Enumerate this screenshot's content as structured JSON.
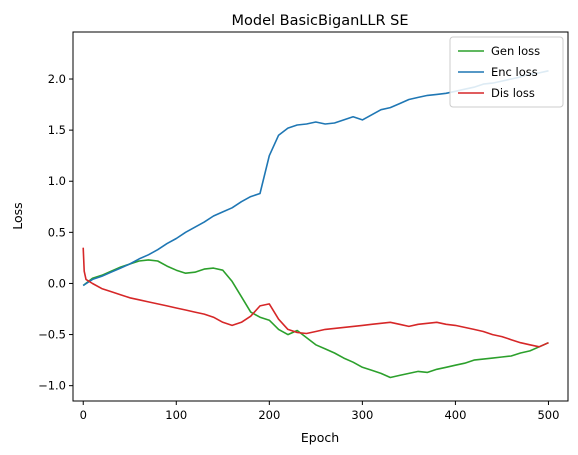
{
  "chart_data": {
    "type": "line",
    "title": "Model BasicBiganLLR SE",
    "xlabel": "Epoch",
    "ylabel": "Loss",
    "xlim": [
      -11,
      521
    ],
    "ylim": [
      -1.15,
      2.46
    ],
    "xticks": [
      0,
      100,
      200,
      300,
      400,
      500
    ],
    "yticks": [
      -1.0,
      -0.5,
      0.0,
      0.5,
      1.0,
      1.5,
      2.0
    ],
    "ytick_labels": [
      "−1.0",
      "−0.5",
      "0.0",
      "0.5",
      "1.0",
      "1.5",
      "2.0"
    ],
    "legend_position": "top-right",
    "grid": false,
    "series": [
      {
        "name": "Gen loss",
        "color": "#2ca02c",
        "x": [
          0,
          10,
          20,
          30,
          40,
          50,
          60,
          70,
          80,
          90,
          100,
          110,
          120,
          130,
          140,
          150,
          160,
          170,
          180,
          190,
          200,
          210,
          220,
          230,
          240,
          250,
          260,
          270,
          280,
          290,
          300,
          310,
          320,
          330,
          340,
          350,
          360,
          370,
          380,
          390,
          400,
          410,
          420,
          430,
          440,
          450,
          460,
          470,
          480,
          490,
          500
        ],
        "y": [
          -0.02,
          0.05,
          0.08,
          0.12,
          0.16,
          0.19,
          0.22,
          0.23,
          0.22,
          0.17,
          0.13,
          0.1,
          0.11,
          0.14,
          0.15,
          0.13,
          0.02,
          -0.13,
          -0.28,
          -0.33,
          -0.36,
          -0.45,
          -0.5,
          -0.46,
          -0.53,
          -0.6,
          -0.64,
          -0.68,
          -0.73,
          -0.77,
          -0.82,
          -0.85,
          -0.88,
          -0.92,
          -0.9,
          -0.88,
          -0.86,
          -0.87,
          -0.84,
          -0.82,
          -0.8,
          -0.78,
          -0.75,
          -0.74,
          -0.73,
          -0.72,
          -0.71,
          -0.68,
          -0.66,
          -0.62,
          -0.58
        ]
      },
      {
        "name": "Enc loss",
        "color": "#1f77b4",
        "x": [
          0,
          10,
          20,
          30,
          40,
          50,
          60,
          70,
          80,
          90,
          100,
          110,
          120,
          130,
          140,
          150,
          160,
          170,
          180,
          190,
          200,
          210,
          220,
          230,
          240,
          250,
          260,
          270,
          280,
          290,
          300,
          310,
          320,
          330,
          340,
          350,
          360,
          370,
          380,
          390,
          400,
          410,
          420,
          430,
          440,
          450,
          460,
          470,
          480,
          490,
          500
        ],
        "y": [
          -0.02,
          0.04,
          0.07,
          0.11,
          0.15,
          0.19,
          0.24,
          0.28,
          0.33,
          0.39,
          0.44,
          0.5,
          0.55,
          0.6,
          0.66,
          0.7,
          0.74,
          0.8,
          0.85,
          0.88,
          1.25,
          1.45,
          1.52,
          1.55,
          1.56,
          1.58,
          1.56,
          1.57,
          1.6,
          1.63,
          1.6,
          1.65,
          1.7,
          1.72,
          1.76,
          1.8,
          1.82,
          1.84,
          1.85,
          1.86,
          1.88,
          1.9,
          1.92,
          1.95,
          1.96,
          1.98,
          2.0,
          2.02,
          2.05,
          2.06,
          2.08
        ]
      },
      {
        "name": "Dis loss",
        "color": "#d62728",
        "x": [
          0,
          1,
          3,
          10,
          20,
          30,
          40,
          50,
          60,
          70,
          80,
          90,
          100,
          110,
          120,
          130,
          140,
          150,
          160,
          170,
          180,
          190,
          200,
          210,
          220,
          230,
          240,
          250,
          260,
          270,
          280,
          290,
          300,
          310,
          320,
          330,
          340,
          350,
          360,
          370,
          380,
          390,
          400,
          410,
          420,
          430,
          440,
          450,
          460,
          470,
          480,
          490,
          500
        ],
        "y": [
          0.35,
          0.12,
          0.04,
          0.0,
          -0.05,
          -0.08,
          -0.11,
          -0.14,
          -0.16,
          -0.18,
          -0.2,
          -0.22,
          -0.24,
          -0.26,
          -0.28,
          -0.3,
          -0.33,
          -0.38,
          -0.41,
          -0.38,
          -0.32,
          -0.22,
          -0.2,
          -0.35,
          -0.45,
          -0.48,
          -0.49,
          -0.47,
          -0.45,
          -0.44,
          -0.43,
          -0.42,
          -0.41,
          -0.4,
          -0.39,
          -0.38,
          -0.4,
          -0.42,
          -0.4,
          -0.39,
          -0.38,
          -0.4,
          -0.41,
          -0.43,
          -0.45,
          -0.47,
          -0.5,
          -0.52,
          -0.55,
          -0.58,
          -0.6,
          -0.62,
          -0.58
        ]
      }
    ]
  }
}
